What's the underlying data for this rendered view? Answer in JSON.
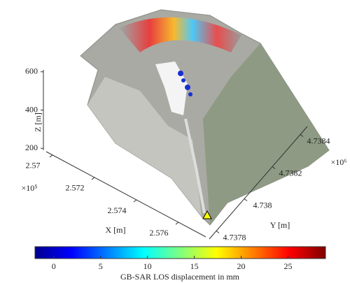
{
  "chart_data": {
    "type": "scatter3d",
    "xlabel": "X [m]",
    "ylabel": "Y [m]",
    "zlabel": "Z [m]",
    "xlim": [
      2.5697,
      2.5773
    ],
    "xticks": [
      2.57,
      2.572,
      2.574,
      2.576
    ],
    "xexponent": "×10⁵",
    "ylim": [
      4.73775,
      4.73845
    ],
    "yticks": [
      4.7378,
      4.738,
      4.7382,
      4.7384
    ],
    "yexponent": "×10⁶",
    "zlim": [
      190,
      610
    ],
    "zticks": [
      200,
      400,
      600
    ],
    "colorbar": {
      "label": "GB-SAR LOS displacement in mm",
      "clim": [
        -2,
        29
      ],
      "ticks": [
        0,
        5,
        10,
        15,
        20,
        25
      ],
      "colormap": "jet"
    }
  }
}
